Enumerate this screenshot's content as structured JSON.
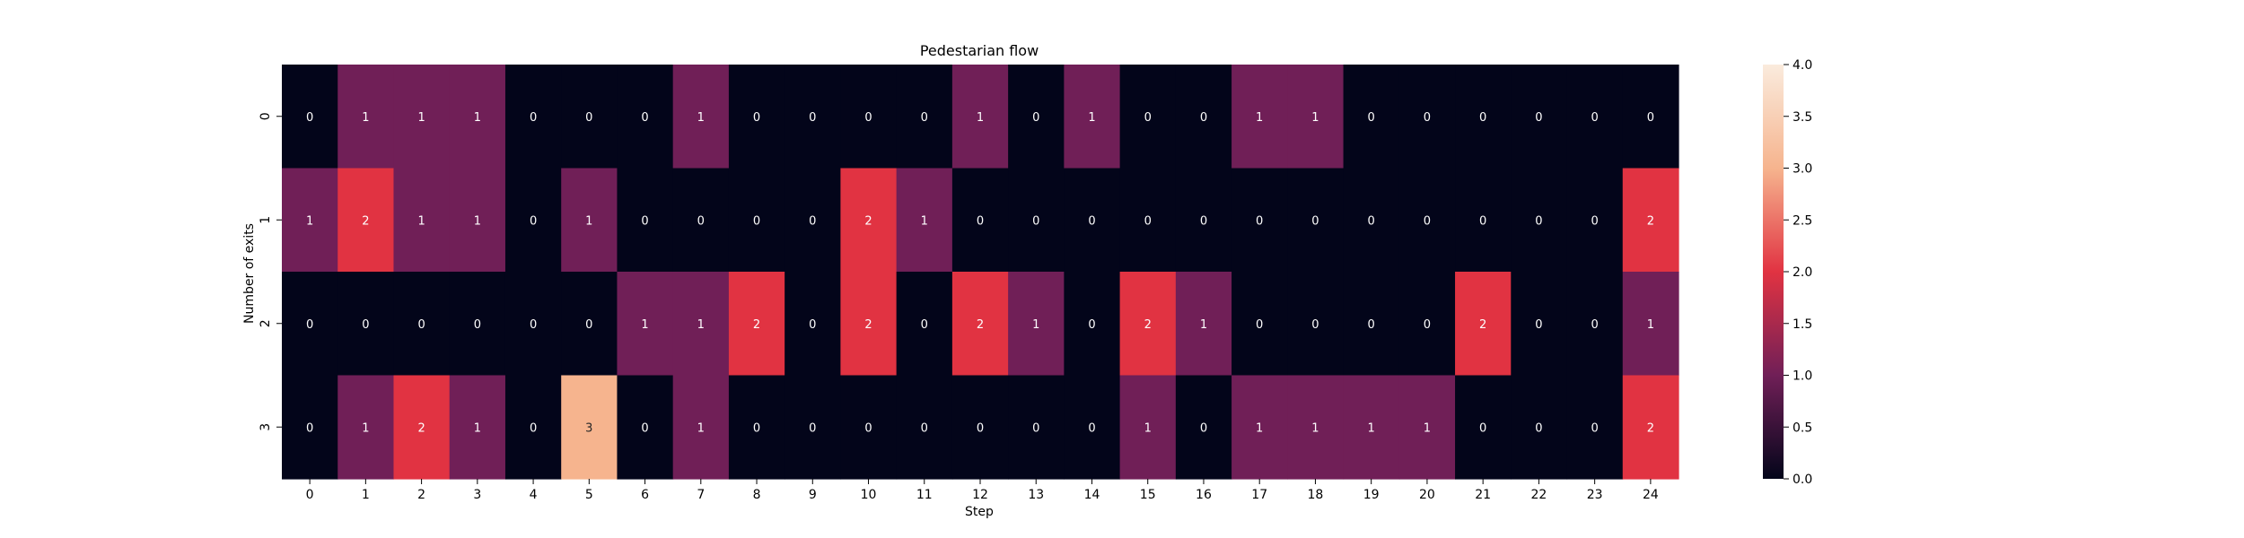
{
  "chart_data": {
    "type": "heatmap",
    "title": "Pedestarian flow",
    "xlabel": "Step",
    "ylabel": "Number of exits",
    "x_categories": [
      "0",
      "1",
      "2",
      "3",
      "4",
      "5",
      "6",
      "7",
      "8",
      "9",
      "10",
      "11",
      "12",
      "13",
      "14",
      "15",
      "16",
      "17",
      "18",
      "19",
      "20",
      "21",
      "22",
      "23",
      "24"
    ],
    "y_categories": [
      "0",
      "1",
      "2",
      "3"
    ],
    "values": [
      [
        0,
        1,
        1,
        1,
        0,
        0,
        0,
        1,
        0,
        0,
        0,
        0,
        1,
        0,
        1,
        0,
        0,
        1,
        1,
        0,
        0,
        0,
        0,
        0,
        0
      ],
      [
        1,
        2,
        1,
        1,
        0,
        1,
        0,
        0,
        0,
        0,
        2,
        1,
        0,
        0,
        0,
        0,
        0,
        0,
        0,
        0,
        0,
        0,
        0,
        0,
        2
      ],
      [
        0,
        0,
        0,
        0,
        0,
        0,
        1,
        1,
        2,
        0,
        2,
        0,
        2,
        1,
        0,
        2,
        1,
        0,
        0,
        0,
        0,
        2,
        0,
        0,
        1
      ],
      [
        0,
        1,
        2,
        1,
        0,
        3,
        0,
        1,
        0,
        0,
        0,
        0,
        0,
        0,
        0,
        1,
        0,
        1,
        1,
        1,
        1,
        0,
        0,
        0,
        2
      ]
    ],
    "annotate": true,
    "colorbar": {
      "vmin": 0,
      "vmax": 4,
      "ticks": [
        "0.0",
        "0.5",
        "1.0",
        "1.5",
        "2.0",
        "2.5",
        "3.0",
        "3.5",
        "4.0"
      ]
    },
    "colormap": [
      "#03051a",
      "#701f57",
      "#e13342",
      "#f6b48e",
      "#faebdd"
    ]
  }
}
